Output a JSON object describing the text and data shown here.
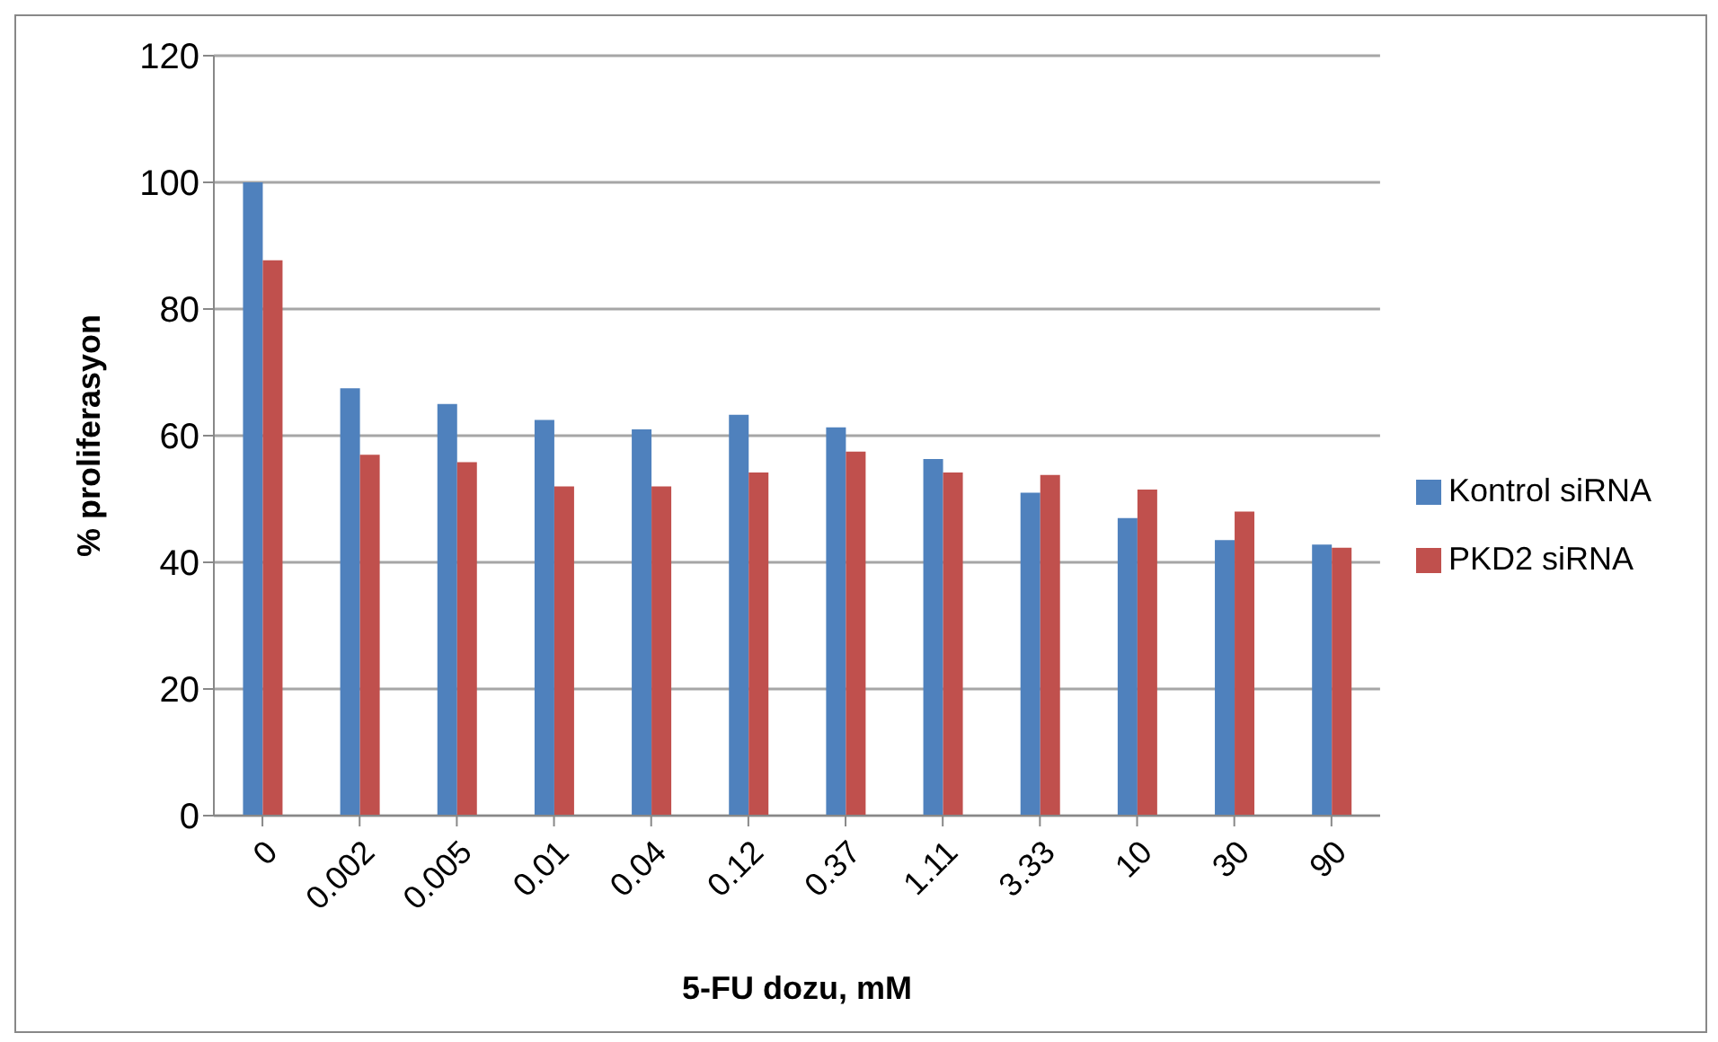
{
  "chart_data": {
    "type": "bar",
    "xlabel": "5-FU dozu, mM",
    "ylabel": "% proliferasyon",
    "categories": [
      "0",
      "0.002",
      "0.005",
      "0.01",
      "0.04",
      "0.12",
      "0.37",
      "1.11",
      "3.33",
      "10",
      "30",
      "90"
    ],
    "series": [
      {
        "name": "Kontrol siRNA",
        "color": "#4f81bd",
        "values": [
          100,
          67.5,
          65,
          62.5,
          61,
          63.3,
          61.3,
          56.3,
          51,
          47,
          43.5,
          42.8
        ]
      },
      {
        "name": "PKD2 siRNA",
        "color": "#c0504d",
        "values": [
          87.7,
          57,
          55.8,
          52,
          52,
          54.2,
          57.5,
          54.2,
          53.8,
          51.5,
          48,
          42.3
        ]
      }
    ],
    "ylim": [
      0,
      120
    ],
    "yticks": [
      0,
      20,
      40,
      60,
      80,
      100,
      120
    ],
    "grid": "y",
    "legend": "right"
  }
}
